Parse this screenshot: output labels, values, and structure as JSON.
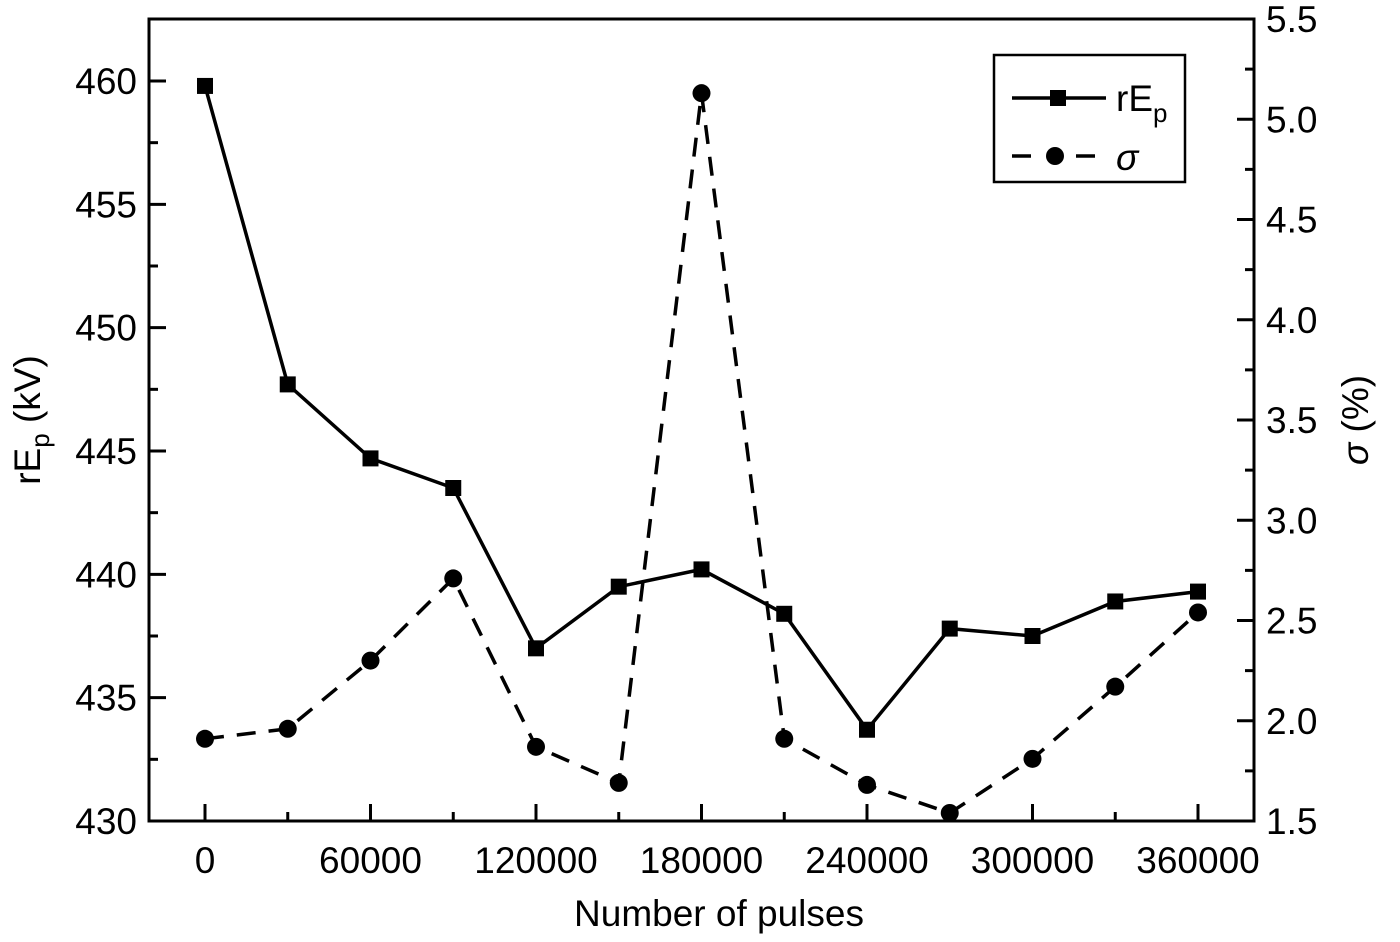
{
  "chart_data": {
    "type": "line",
    "title": "",
    "xlabel": "Number of pulses",
    "ylabel": "rEp (kV)",
    "ylabel_parts": {
      "main": "rE",
      "sub": "p",
      "unit": " (kV)"
    },
    "y2label": "σ (%)",
    "y2label_parts": {
      "main": "σ",
      "unit": " (%)"
    },
    "xlim": [
      -30000,
      390000
    ],
    "ylim": [
      430,
      462.5
    ],
    "y2lim": [
      1.5,
      5.5
    ],
    "x_ticks": [
      0,
      60000,
      120000,
      180000,
      240000,
      300000,
      360000
    ],
    "x_tick_labels": [
      "0",
      "60000",
      "120000",
      "180000",
      "240000",
      "300000",
      "360000"
    ],
    "x_minor_ticks": [
      30000,
      90000,
      150000,
      210000,
      270000,
      330000
    ],
    "y_ticks": [
      430,
      435,
      440,
      445,
      450,
      455,
      460
    ],
    "y_tick_labels": [
      "430",
      "435",
      "440",
      "445",
      "450",
      "455",
      "460"
    ],
    "y_minor_ticks": [
      432.5,
      437.5,
      442.5,
      447.5,
      452.5,
      457.5
    ],
    "y2_ticks": [
      1.5,
      2.0,
      2.5,
      3.0,
      3.5,
      4.0,
      4.5,
      5.0,
      5.5
    ],
    "y2_tick_labels": [
      "1.5",
      "2.0",
      "2.5",
      "3.0",
      "3.5",
      "4.0",
      "4.5",
      "5.0",
      "5.5"
    ],
    "y2_minor_ticks": [
      1.75,
      2.25,
      2.75,
      3.25,
      3.75,
      4.25,
      4.75,
      5.25
    ],
    "grid": false,
    "legend_position": "upper right",
    "x": [
      0,
      30000,
      60000,
      90000,
      120000,
      150000,
      180000,
      210000,
      240000,
      270000,
      300000,
      330000,
      360000
    ],
    "series": [
      {
        "name": "rEp",
        "legend_main": "rE",
        "legend_sub": "p",
        "axis": "left",
        "line_style": "solid",
        "marker": "square",
        "color": "#000000",
        "values": [
          459.8,
          447.7,
          444.7,
          443.5,
          437.0,
          439.5,
          440.2,
          438.4,
          433.7,
          437.8,
          437.5,
          438.9,
          439.3
        ]
      },
      {
        "name": "σ",
        "legend_main": "σ",
        "legend_sub": "",
        "axis": "right",
        "line_style": "dashed",
        "marker": "circle",
        "color": "#000000",
        "values": [
          1.91,
          1.96,
          2.3,
          2.71,
          1.87,
          1.69,
          5.13,
          1.91,
          1.68,
          1.54,
          1.81,
          2.17,
          2.54
        ]
      }
    ]
  }
}
